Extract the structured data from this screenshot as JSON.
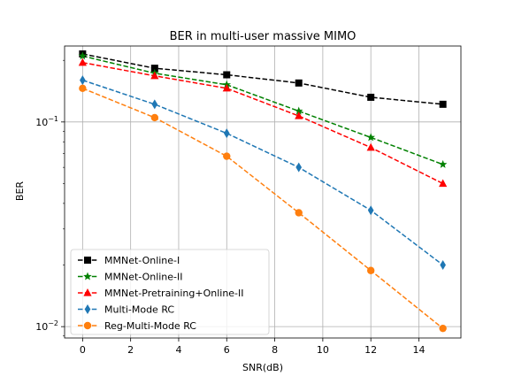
{
  "chart_data": {
    "type": "line",
    "title": "BER in multi-user massive MIMO",
    "xlabel": "SNR(dB)",
    "ylabel": "BER",
    "x": [
      0,
      3,
      6,
      9,
      12,
      15
    ],
    "xlim": [
      -0.75,
      15.75
    ],
    "xticks": [
      0,
      2,
      4,
      6,
      8,
      10,
      12,
      14
    ],
    "ylim": [
      0.0088,
      0.235
    ],
    "yscale": "log",
    "yticks": [
      {
        "value": 0.1,
        "base": "10",
        "exp": "−1"
      },
      {
        "value": 0.01,
        "base": "10",
        "exp": "−2"
      }
    ],
    "grid": true,
    "legend": "lower-left",
    "series": [
      {
        "name": "MMNet-Online-I",
        "color": "#000000",
        "marker": "square",
        "values": [
          0.215,
          0.183,
          0.17,
          0.155,
          0.132,
          0.122
        ]
      },
      {
        "name": "MMNet-Online-II",
        "color": "#008000",
        "marker": "star",
        "values": [
          0.21,
          0.173,
          0.152,
          0.113,
          0.084,
          0.062
        ]
      },
      {
        "name": "MMNet-Pretraining+Online-II",
        "color": "#ff0000",
        "marker": "triangle",
        "values": [
          0.195,
          0.168,
          0.146,
          0.107,
          0.075,
          0.05
        ]
      },
      {
        "name": "Multi-Mode RC",
        "color": "#1f77b4",
        "marker": "diamond",
        "values": [
          0.16,
          0.122,
          0.088,
          0.06,
          0.037,
          0.02
        ]
      },
      {
        "name": "Reg-Multi-Mode RC",
        "color": "#ff7f0e",
        "marker": "circle",
        "values": [
          0.146,
          0.105,
          0.068,
          0.036,
          0.0188,
          0.0098
        ]
      }
    ]
  }
}
